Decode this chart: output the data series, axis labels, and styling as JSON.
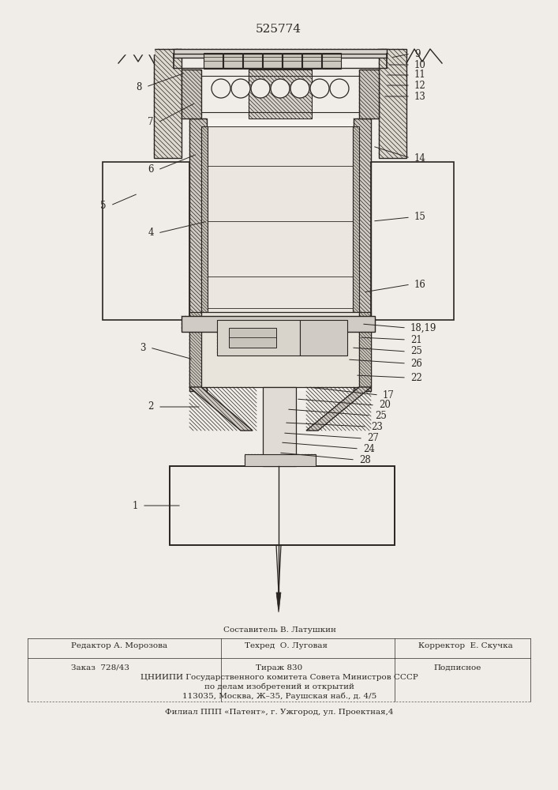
{
  "patent_number": "525774",
  "background_color": "#f0ede8",
  "line_color": "#2a2520",
  "fig_width": 7.07,
  "fig_height": 10.0,
  "footer": {
    "comp": "Составитель В. Латушкин",
    "editor": "Редактор А. Морозова",
    "tech": "Техред  О. Луговая",
    "corrector": "Корректор  Е. Скучка",
    "order": "Заказ  728/43",
    "tirazh": "Тираж 830",
    "podp": "Подписное",
    "org1": "ЦНИИПИ Государственного комитета Совета Министров СССР",
    "org2": "по делам изобретений и открытий",
    "org3": "113035, Москва, Ж–35, Раушская наб., д. 4/5",
    "branch": "Филиал ППП «Патент», г. Ужгород, ул. Проектная,4"
  }
}
